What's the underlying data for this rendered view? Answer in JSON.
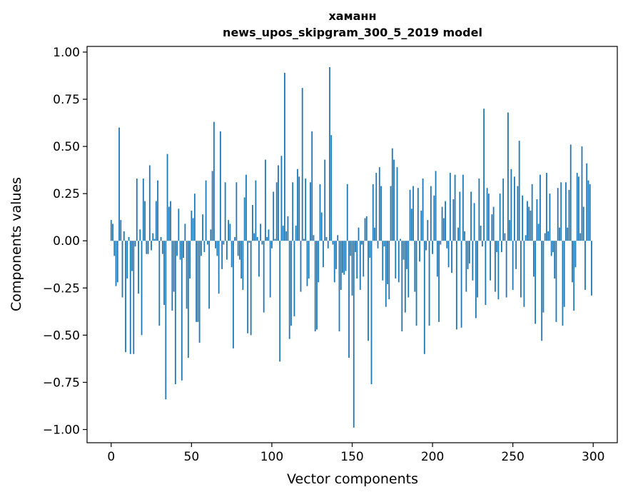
{
  "chart_data": {
    "type": "bar",
    "title_line1": "хаманн",
    "title_line2": "news_upos_skipgram_300_5_2019 model",
    "xlabel": "Vector components",
    "ylabel": "Components values",
    "xlim": [
      -15,
      315
    ],
    "ylim": [
      -1.07,
      1.03
    ],
    "xticks": [
      0,
      50,
      100,
      150,
      200,
      250,
      300
    ],
    "xtick_labels": [
      "0",
      "50",
      "100",
      "150",
      "200",
      "250",
      "300"
    ],
    "yticks": [
      -1.0,
      -0.75,
      -0.5,
      -0.25,
      0.0,
      0.25,
      0.5,
      0.75,
      1.0
    ],
    "ytick_labels": [
      "−1.00",
      "−0.75",
      "−0.50",
      "−0.25",
      "0.00",
      "0.25",
      "0.50",
      "0.75",
      "1.00"
    ],
    "grid": false,
    "bar_color": "#1f77b4",
    "values": [
      0.11,
      0.09,
      -0.08,
      -0.24,
      -0.22,
      0.6,
      0.11,
      -0.3,
      0.05,
      -0.59,
      -0.2,
      0.02,
      -0.6,
      -0.16,
      -0.6,
      -0.03,
      0.33,
      -0.28,
      0.06,
      -0.5,
      0.33,
      0.21,
      -0.07,
      -0.07,
      0.4,
      -0.05,
      0.04,
      0.01,
      0.21,
      0.32,
      -0.45,
      0.02,
      -0.07,
      -0.34,
      -0.84,
      0.46,
      0.18,
      0.21,
      -0.37,
      -0.27,
      -0.76,
      -0.08,
      0.17,
      -0.1,
      -0.74,
      -0.09,
      0.09,
      -0.36,
      -0.62,
      -0.2,
      0.16,
      0.12,
      0.25,
      -0.43,
      -0.43,
      -0.54,
      -0.08,
      0.14,
      -0.06,
      0.32,
      -0.02,
      -0.36,
      0.06,
      0.37,
      0.63,
      -0.04,
      -0.08,
      -0.28,
      0.58,
      -0.15,
      -0.02,
      0.31,
      -0.1,
      0.11,
      0.09,
      -0.14,
      -0.57,
      0.02,
      0.31,
      -0.08,
      -0.1,
      -0.2,
      -0.26,
      0.23,
      0.35,
      -0.49,
      -0.01,
      -0.5,
      0.19,
      0.04,
      0.32,
      0.02,
      -0.19,
      0.09,
      -0.02,
      -0.38,
      0.43,
      0.02,
      0.06,
      -0.3,
      -0.04,
      0.26,
      0.01,
      0.31,
      0.4,
      -0.64,
      0.45,
      0.08,
      0.89,
      0.05,
      0.13,
      -0.52,
      -0.45,
      0.31,
      -0.4,
      0.08,
      0.38,
      0.34,
      -0.27,
      0.81,
      0.01,
      0.33,
      -0.24,
      -0.2,
      0.31,
      0.58,
      0.03,
      -0.48,
      -0.47,
      -0.22,
      0.3,
      0.15,
      -0.14,
      0.43,
      0.02,
      -0.04,
      0.92,
      0.56,
      -0.02,
      -0.22,
      -0.15,
      0.03,
      -0.48,
      -0.26,
      -0.17,
      -0.18,
      -0.16,
      0.3,
      -0.62,
      -0.08,
      -0.29,
      -0.99,
      -0.06,
      -0.2,
      0.07,
      -0.26,
      -0.02,
      -0.19,
      0.12,
      0.13,
      -0.53,
      -0.09,
      -0.76,
      0.3,
      0.07,
      0.36,
      -0.04,
      0.39,
      0.29,
      -0.21,
      -0.03,
      -0.35,
      -0.23,
      -0.31,
      0.29,
      0.49,
      0.43,
      -0.2,
      0.39,
      -0.22,
      0.01,
      -0.48,
      -0.1,
      -0.38,
      -0.15,
      -0.3,
      0.27,
      0.17,
      0.29,
      -0.27,
      -0.45,
      0.28,
      -0.11,
      0.16,
      0.33,
      -0.6,
      -0.05,
      0.11,
      -0.45,
      0.29,
      -0.07,
      0.24,
      0.37,
      -0.19,
      -0.43,
      -0.02,
      0.18,
      0.12,
      0.21,
      -0.04,
      -0.14,
      0.36,
      -0.17,
      0.22,
      0.35,
      -0.47,
      0.07,
      0.26,
      -0.46,
      0.35,
      0.05,
      -0.27,
      -0.15,
      -0.12,
      0.26,
      -0.21,
      0.2,
      -0.41,
      -0.3,
      0.33,
      0.08,
      -0.03,
      0.7,
      -0.34,
      0.28,
      0.25,
      -0.21,
      0.14,
      0.18,
      -0.27,
      -0.06,
      -0.31,
      0.25,
      -0.06,
      0.33,
      0.04,
      -0.3,
      0.68,
      0.11,
      0.38,
      -0.26,
      0.34,
      -0.15,
      0.29,
      0.53,
      -0.3,
      0.24,
      -0.35,
      0.03,
      0.21,
      0.18,
      0.16,
      0.3,
      -0.19,
      -0.44,
      0.22,
      0.09,
      0.35,
      -0.53,
      -0.38,
      0.04,
      0.36,
      0.05,
      0.25,
      -0.08,
      -0.06,
      -0.2,
      -0.43,
      0.28,
      0.07,
      0.31,
      -0.45,
      -0.35,
      0.31,
      0.07,
      0.27,
      0.51,
      -0.22,
      -0.37,
      -0.14,
      0.36,
      0.34,
      0.04,
      0.5,
      0.18,
      -0.26,
      0.41,
      0.32,
      0.3,
      -0.29
    ]
  }
}
